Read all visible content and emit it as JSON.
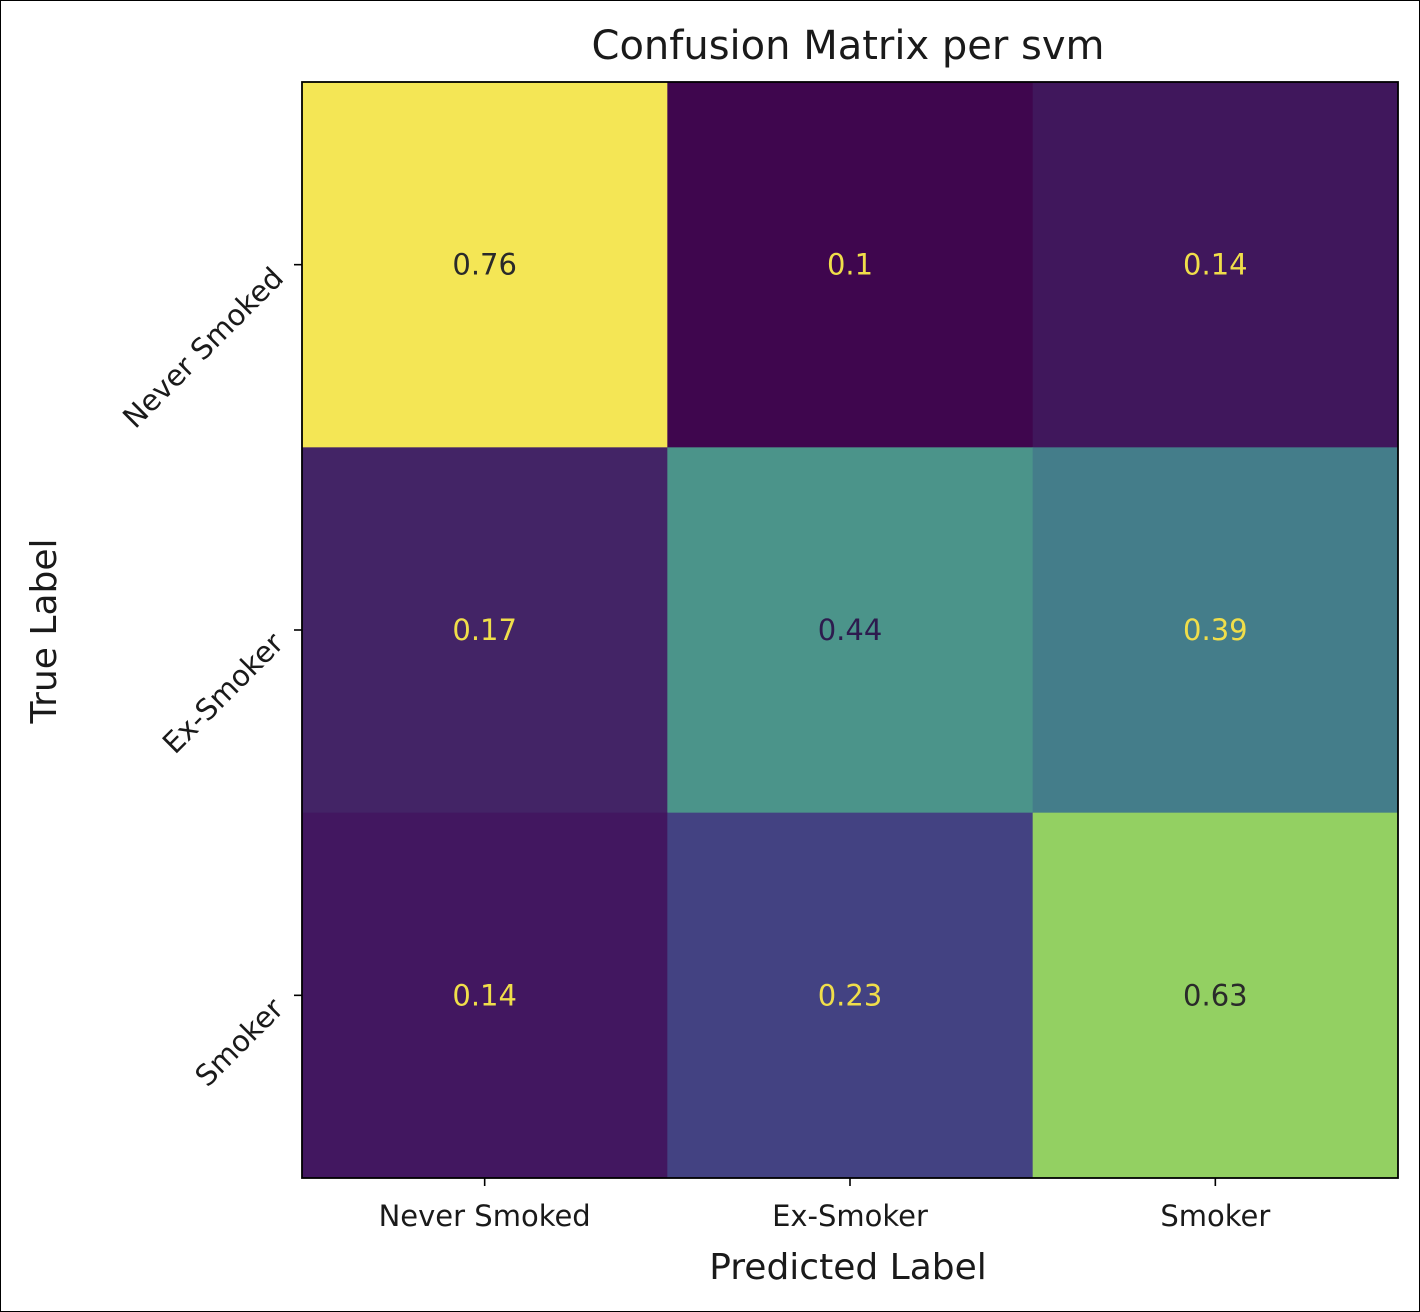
{
  "chart_data": {
    "type": "heatmap",
    "title": "Confusion Matrix per svm",
    "xlabel": "Predicted Label",
    "ylabel": "True Label",
    "x_categories": [
      "Never Smoked",
      "Ex-Smoker",
      "Smoker"
    ],
    "y_categories": [
      "Never Smoked",
      "Ex-Smoker",
      "Smoker"
    ],
    "values": [
      [
        0.76,
        0.1,
        0.14
      ],
      [
        0.17,
        0.44,
        0.39
      ],
      [
        0.14,
        0.23,
        0.63
      ]
    ],
    "value_labels": [
      [
        "0.76",
        "0.1",
        "0.14"
      ],
      [
        "0.17",
        "0.44",
        "0.39"
      ],
      [
        "0.14",
        "0.23",
        "0.63"
      ]
    ],
    "colormap": "viridis",
    "cell_colors": [
      [
        "#f4e655",
        "#3f064e",
        "#40175c"
      ],
      [
        "#432466",
        "#4b948a",
        "#447d8a"
      ],
      [
        "#421760",
        "#434282",
        "#93d062"
      ]
    ],
    "text_color_light": "#f0de4a",
    "text_color_dark": "#2d1b4e",
    "colorbar": false,
    "grid": false
  }
}
